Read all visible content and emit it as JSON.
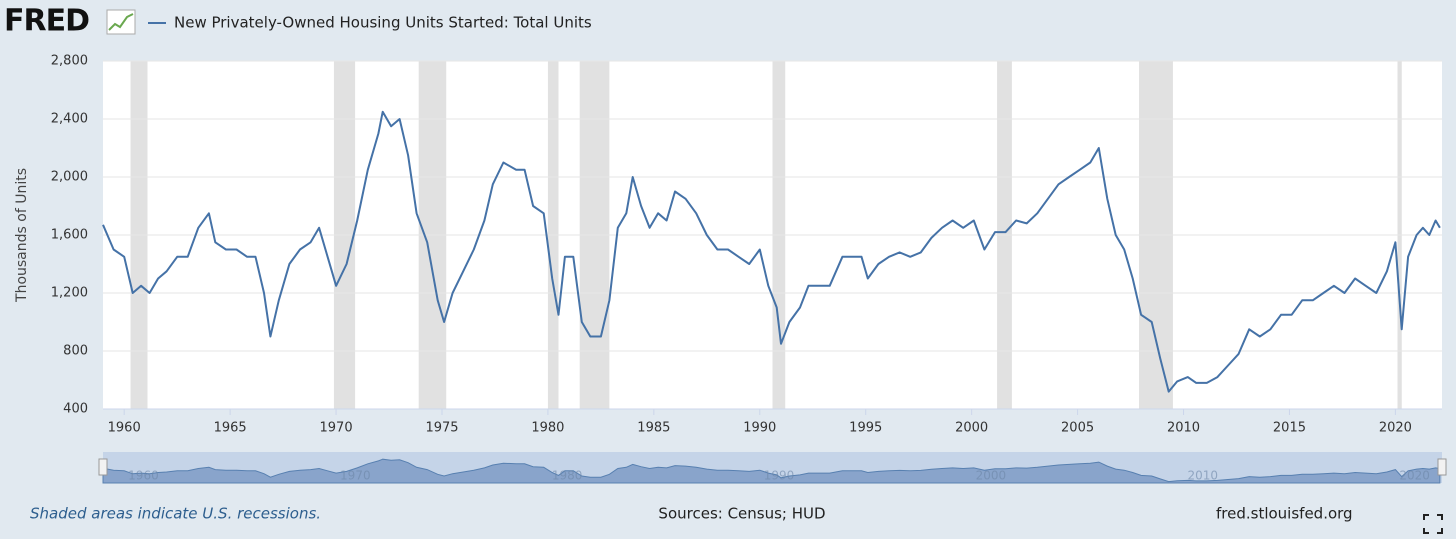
{
  "logo": "FRED",
  "footer": {
    "note": "Shaded areas indicate U.S. recessions.",
    "sources": "Sources: Census; HUD",
    "site": "fred.stlouisfed.org"
  },
  "chart_data": {
    "type": "line",
    "title": "New Privately-Owned Housing Units Started: Total Units",
    "y_label": "Thousands of Units",
    "xlim": [
      1959,
      2022.2
    ],
    "xticks": [
      1960,
      1965,
      1970,
      1975,
      1980,
      1985,
      1990,
      1995,
      2000,
      2005,
      2010,
      2015,
      2020
    ],
    "ylim": [
      400,
      2800
    ],
    "yticks": [
      400,
      800,
      {
        "value": 1200,
        "label": "1,200"
      },
      {
        "value": 1600,
        "label": "1,600"
      },
      {
        "value": 2000,
        "label": "2,000"
      },
      {
        "value": 2400,
        "label": "2,400"
      },
      {
        "value": 2800,
        "label": "2,800"
      }
    ],
    "grid": true,
    "navigator_xticks": [
      1960,
      1970,
      1980,
      1990,
      2000,
      2010,
      2020
    ],
    "recessions": [
      [
        1960.3,
        1961.1
      ],
      [
        1969.9,
        1970.9
      ],
      [
        1973.9,
        1975.2
      ],
      [
        1980.0,
        1980.5
      ],
      [
        1981.5,
        1982.9
      ],
      [
        1990.6,
        1991.2
      ],
      [
        2001.2,
        2001.9
      ],
      [
        2007.9,
        2009.5
      ],
      [
        2020.1,
        2020.3
      ]
    ],
    "recession_color": "#e1e1e1",
    "x": [
      1959.0,
      1959.5,
      1960.0,
      1960.4,
      1960.8,
      1961.2,
      1961.6,
      1962.0,
      1962.5,
      1963.0,
      1963.5,
      1964.0,
      1964.3,
      1964.8,
      1965.3,
      1965.8,
      1966.2,
      1966.6,
      1966.9,
      1967.3,
      1967.8,
      1968.3,
      1968.8,
      1969.2,
      1969.6,
      1970.0,
      1970.5,
      1971.0,
      1971.5,
      1972.0,
      1972.2,
      1972.6,
      1973.0,
      1973.4,
      1973.8,
      1974.3,
      1974.8,
      1975.1,
      1975.5,
      1976.0,
      1976.5,
      1977.0,
      1977.4,
      1977.9,
      1978.5,
      1978.9,
      1979.3,
      1979.8,
      1980.2,
      1980.5,
      1980.8,
      1981.2,
      1981.6,
      1982.0,
      1982.5,
      1982.9,
      1983.3,
      1983.7,
      1984.0,
      1984.4,
      1984.8,
      1985.2,
      1985.6,
      1986.0,
      1986.5,
      1987.0,
      1987.5,
      1988.0,
      1988.5,
      1989.0,
      1989.5,
      1990.0,
      1990.4,
      1990.8,
      1991.0,
      1991.4,
      1991.9,
      1992.3,
      1992.8,
      1993.3,
      1993.9,
      1994.3,
      1994.8,
      1995.1,
      1995.6,
      1996.1,
      1996.6,
      1997.1,
      1997.6,
      1998.1,
      1998.6,
      1999.1,
      1999.6,
      2000.1,
      2000.6,
      2001.1,
      2001.6,
      2002.1,
      2002.6,
      2003.1,
      2003.6,
      2004.1,
      2004.6,
      2005.1,
      2005.6,
      2006.0,
      2006.4,
      2006.8,
      2007.2,
      2007.6,
      2008.0,
      2008.5,
      2008.9,
      2009.3,
      2009.7,
      2010.2,
      2010.6,
      2011.1,
      2011.6,
      2012.1,
      2012.6,
      2013.1,
      2013.6,
      2014.1,
      2014.6,
      2015.1,
      2015.6,
      2016.1,
      2016.6,
      2017.1,
      2017.6,
      2018.1,
      2018.6,
      2019.1,
      2019.6,
      2020.0,
      2020.3,
      2020.6,
      2021.0,
      2021.3,
      2021.6,
      2021.9,
      2022.1
    ],
    "series": [
      {
        "name": "New Privately-Owned Housing Units Started: Total Units",
        "color": "#4572a7",
        "values": [
          1670,
          1500,
          1450,
          1200,
          1250,
          1200,
          1300,
          1350,
          1450,
          1450,
          1650,
          1750,
          1550,
          1500,
          1500,
          1450,
          1450,
          1200,
          900,
          1150,
          1400,
          1500,
          1550,
          1650,
          1450,
          1250,
          1400,
          1700,
          2050,
          2300,
          2450,
          2350,
          2400,
          2150,
          1750,
          1550,
          1150,
          1000,
          1200,
          1350,
          1500,
          1700,
          1950,
          2100,
          2050,
          2050,
          1800,
          1750,
          1300,
          1050,
          1450,
          1450,
          1000,
          900,
          900,
          1150,
          1650,
          1750,
          2000,
          1800,
          1650,
          1750,
          1700,
          1900,
          1850,
          1750,
          1600,
          1500,
          1500,
          1450,
          1400,
          1500,
          1250,
          1100,
          850,
          1000,
          1100,
          1250,
          1250,
          1250,
          1450,
          1450,
          1450,
          1300,
          1400,
          1450,
          1480,
          1450,
          1480,
          1580,
          1650,
          1700,
          1650,
          1700,
          1500,
          1620,
          1620,
          1700,
          1680,
          1750,
          1850,
          1950,
          2000,
          2050,
          2100,
          2200,
          1850,
          1600,
          1500,
          1300,
          1050,
          1000,
          750,
          520,
          590,
          620,
          580,
          580,
          620,
          700,
          780,
          950,
          900,
          950,
          1050,
          1050,
          1150,
          1150,
          1200,
          1250,
          1200,
          1300,
          1250,
          1200,
          1350,
          1550,
          950,
          1450,
          1600,
          1650,
          1600,
          1700,
          1650
        ]
      }
    ]
  }
}
